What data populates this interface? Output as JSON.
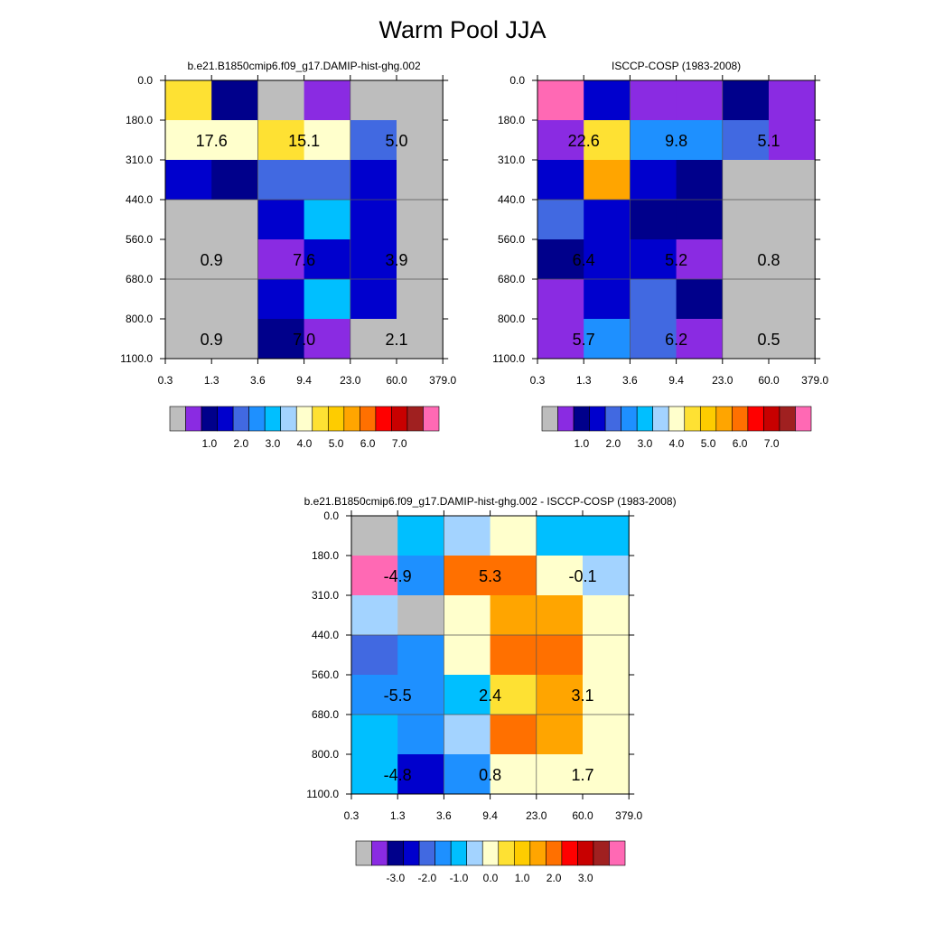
{
  "figure": {
    "title": "Warm Pool JJA"
  },
  "colors": {
    "scale": [
      "#bdbdbd",
      "#8a2be2",
      "#00008b",
      "#0000cd",
      "#4169e1",
      "#1e90ff",
      "#00bfff",
      "#a3d3ff",
      "#ffffcc",
      "#fee133",
      "#fecc00",
      "#ffa500",
      "#ff7000",
      "#ff0000",
      "#c80000",
      "#a02020",
      "#ff69b4"
    ],
    "cell_border": "#333333",
    "missing": "#bdbdbd"
  },
  "chart_data": [
    {
      "type": "heatmap",
      "title": "b.e21.B1850cmip6.f09_g17.DAMIP-hist-ghg.002",
      "x_edges": [
        "0.3",
        "1.3",
        "3.6",
        "9.4",
        "23.0",
        "60.0",
        "379.0"
      ],
      "y_edges": [
        "0.0",
        "180.0",
        "310.0",
        "440.0",
        "560.0",
        "680.0",
        "800.0",
        "1100.0"
      ],
      "grid_color_index": [
        [
          9,
          2,
          0,
          1,
          0,
          0
        ],
        [
          8,
          8,
          9,
          8,
          4,
          0
        ],
        [
          3,
          2,
          4,
          4,
          3,
          0
        ],
        [
          0,
          0,
          3,
          6,
          3,
          0
        ],
        [
          0,
          0,
          1,
          3,
          3,
          0
        ],
        [
          0,
          0,
          3,
          6,
          3,
          0
        ],
        [
          0,
          0,
          2,
          1,
          0,
          0
        ]
      ],
      "labels": [
        {
          "text": "17.6",
          "col": 0,
          "row": 1
        },
        {
          "text": "15.1",
          "col": 2,
          "row": 1
        },
        {
          "text": "5.0",
          "col": 4,
          "row": 1
        },
        {
          "text": "0.9",
          "col": 0,
          "row": 4
        },
        {
          "text": "7.6",
          "col": 2,
          "row": 4
        },
        {
          "text": "3.9",
          "col": 4,
          "row": 4
        },
        {
          "text": "0.9",
          "col": 0,
          "row": 6
        },
        {
          "text": "7.0",
          "col": 2,
          "row": 6
        },
        {
          "text": "2.1",
          "col": 4,
          "row": 6
        }
      ],
      "colorbar": {
        "labels": [
          "1.0",
          "2.0",
          "3.0",
          "4.0",
          "5.0",
          "6.0",
          "7.0"
        ]
      }
    },
    {
      "type": "heatmap",
      "title": "ISCCP-COSP (1983-2008)",
      "x_edges": [
        "0.3",
        "1.3",
        "3.6",
        "9.4",
        "23.0",
        "60.0",
        "379.0"
      ],
      "y_edges": [
        "0.0",
        "180.0",
        "310.0",
        "440.0",
        "560.0",
        "680.0",
        "800.0",
        "1100.0"
      ],
      "grid_color_index": [
        [
          16,
          3,
          1,
          1,
          2,
          1
        ],
        [
          1,
          9,
          5,
          5,
          4,
          1
        ],
        [
          3,
          11,
          3,
          2,
          0,
          0
        ],
        [
          4,
          3,
          2,
          2,
          0,
          0
        ],
        [
          2,
          3,
          3,
          1,
          0,
          0
        ],
        [
          1,
          3,
          4,
          2,
          0,
          0
        ],
        [
          1,
          5,
          4,
          1,
          0,
          0
        ]
      ],
      "labels": [
        {
          "text": "22.6",
          "col": 0,
          "row": 1
        },
        {
          "text": "9.8",
          "col": 2,
          "row": 1
        },
        {
          "text": "5.1",
          "col": 4,
          "row": 1
        },
        {
          "text": "6.4",
          "col": 0,
          "row": 4
        },
        {
          "text": "5.2",
          "col": 2,
          "row": 4
        },
        {
          "text": "0.8",
          "col": 4,
          "row": 4
        },
        {
          "text": "5.7",
          "col": 0,
          "row": 6
        },
        {
          "text": "6.2",
          "col": 2,
          "row": 6
        },
        {
          "text": "0.5",
          "col": 4,
          "row": 6
        }
      ],
      "colorbar": {
        "labels": [
          "1.0",
          "2.0",
          "3.0",
          "4.0",
          "5.0",
          "6.0",
          "7.0"
        ]
      }
    },
    {
      "type": "heatmap",
      "title": "b.e21.B1850cmip6.f09_g17.DAMIP-hist-ghg.002 - ISCCP-COSP (1983-2008)",
      "x_edges": [
        "0.3",
        "1.3",
        "3.6",
        "9.4",
        "23.0",
        "60.0",
        "379.0"
      ],
      "y_edges": [
        "0.0",
        "180.0",
        "310.0",
        "440.0",
        "560.0",
        "680.0",
        "800.0",
        "1100.0"
      ],
      "grid_color_index": [
        [
          0,
          6,
          7,
          8,
          6,
          6
        ],
        [
          16,
          5,
          12,
          12,
          8,
          7
        ],
        [
          7,
          0,
          8,
          11,
          11,
          8
        ],
        [
          4,
          5,
          8,
          12,
          12,
          8
        ],
        [
          5,
          5,
          6,
          9,
          11,
          8
        ],
        [
          6,
          5,
          7,
          12,
          11,
          8
        ],
        [
          6,
          3,
          5,
          8,
          8,
          8
        ]
      ],
      "labels": [
        {
          "text": "-4.9",
          "col": 0,
          "row": 1
        },
        {
          "text": "5.3",
          "col": 2,
          "row": 1
        },
        {
          "text": "-0.1",
          "col": 4,
          "row": 1
        },
        {
          "text": "-5.5",
          "col": 0,
          "row": 4
        },
        {
          "text": "2.4",
          "col": 2,
          "row": 4
        },
        {
          "text": "3.1",
          "col": 4,
          "row": 4
        },
        {
          "text": "-4.8",
          "col": 0,
          "row": 6
        },
        {
          "text": "0.8",
          "col": 2,
          "row": 6
        },
        {
          "text": "1.7",
          "col": 4,
          "row": 6
        }
      ],
      "colorbar": {
        "labels": [
          "-3.0",
          "-2.0",
          "-1.0",
          "0.0",
          "1.0",
          "2.0",
          "3.0"
        ]
      }
    }
  ]
}
